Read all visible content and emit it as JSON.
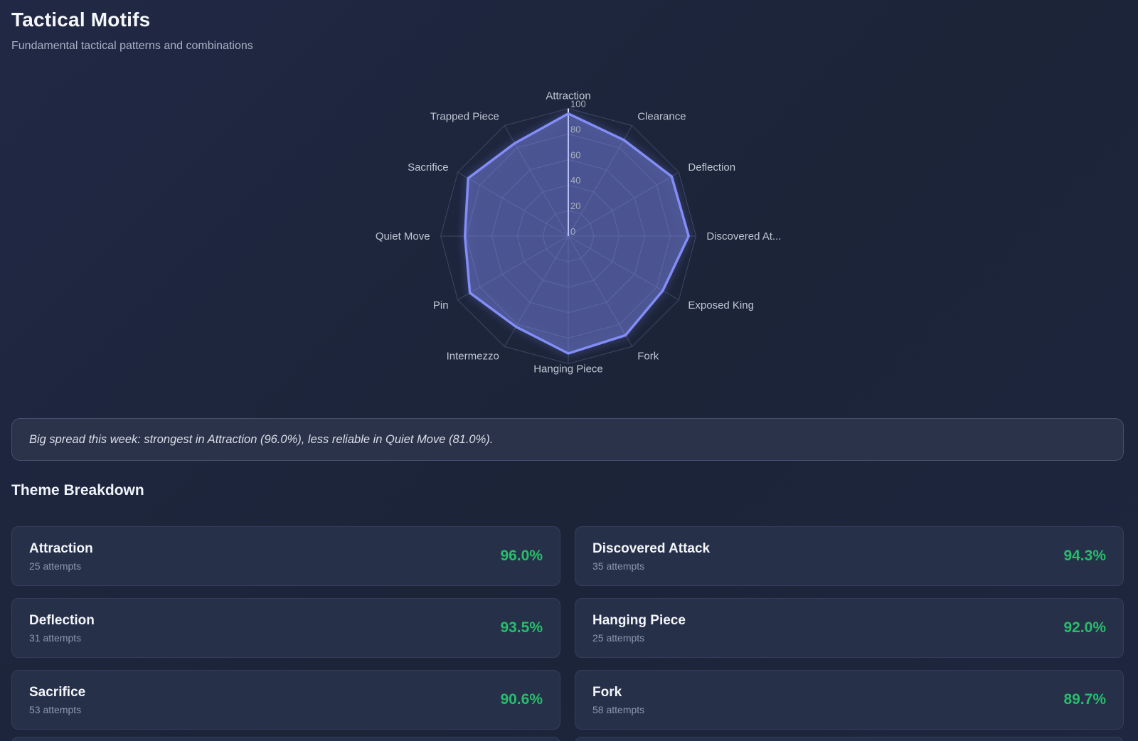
{
  "page": {
    "title": "Tactical Motifs",
    "subtitle": "Fundamental tactical patterns and combinations"
  },
  "chart_data": {
    "type": "radar",
    "axes": [
      "Attraction",
      "Clearance",
      "Deflection",
      "Discovered At...",
      "Exposed King",
      "Fork",
      "Hanging Piece",
      "Intermezzo",
      "Pin",
      "Quiet Move",
      "Sacrifice",
      "Trapped Piece"
    ],
    "values": [
      96.0,
      87,
      93.5,
      94.3,
      85.5,
      89.7,
      92.0,
      82,
      89,
      81.0,
      90.6,
      84
    ],
    "ticks": [
      "0",
      "20",
      "40",
      "60",
      "80",
      "100"
    ],
    "max": 100,
    "grid": "polygon",
    "stroke_color": "#828df8",
    "fill_color": "rgba(130,141,248,0.36)"
  },
  "note": {
    "text": "Big spread this week: strongest in Attraction (96.0%), less reliable in Quiet Move (81.0%)."
  },
  "breakdown": {
    "heading": "Theme Breakdown",
    "cards": [
      {
        "theme": "Attraction",
        "attempts": "25 attempts",
        "accuracy": "96.0%"
      },
      {
        "theme": "Discovered Attack",
        "attempts": "35 attempts",
        "accuracy": "94.3%"
      },
      {
        "theme": "Deflection",
        "attempts": "31 attempts",
        "accuracy": "93.5%"
      },
      {
        "theme": "Hanging Piece",
        "attempts": "25 attempts",
        "accuracy": "92.0%"
      },
      {
        "theme": "Sacrifice",
        "attempts": "53 attempts",
        "accuracy": "90.6%"
      },
      {
        "theme": "Fork",
        "attempts": "58 attempts",
        "accuracy": "89.7%"
      }
    ]
  },
  "colors": {
    "accent_green": "#26be6a",
    "radar_stroke": "#828df8",
    "page_bg": "#1c2438"
  }
}
